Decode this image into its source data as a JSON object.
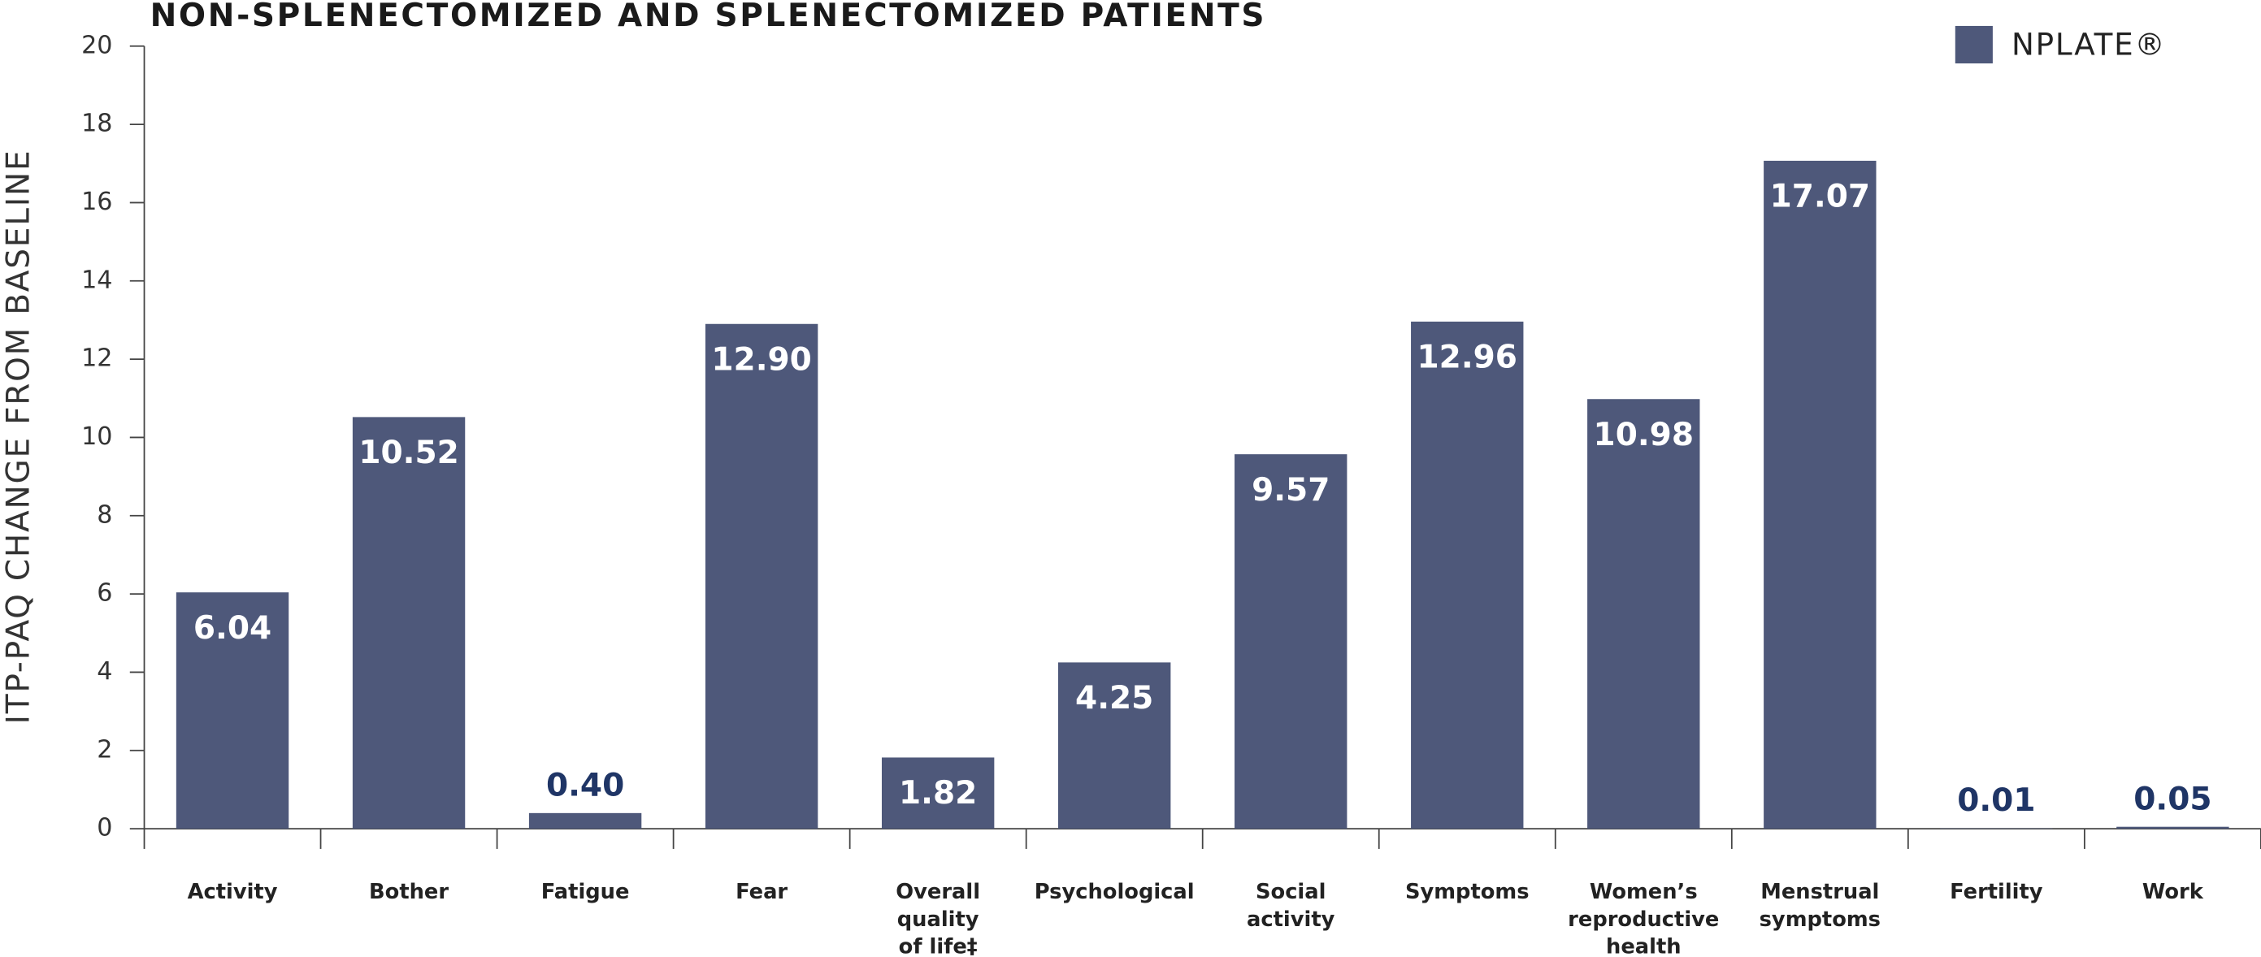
{
  "chart_data": {
    "type": "bar",
    "title": "NON-SPLENECTOMIZED AND SPLENECTOMIZED PATIENTS",
    "y_label": "ITP-PAQ CHANGE FROM BASELINE",
    "categories": [
      "Activity",
      "Bother",
      "Fatigue",
      "Fear",
      "Overall quality of life‡",
      "Psychological",
      "Social activity",
      "Symptoms",
      "Women’s reproductive health",
      "Menstrual symptoms",
      "Fertility",
      "Work"
    ],
    "series": [
      {
        "name": "NPLATE®",
        "color": "#4e587a",
        "values": [
          6.04,
          10.52,
          0.4,
          12.9,
          1.82,
          4.25,
          9.57,
          12.96,
          10.98,
          17.07,
          0.01,
          0.05
        ],
        "value_labels": [
          "6.04",
          "10.52",
          "0.40",
          "12.90",
          "1.82",
          "4.25",
          "9.57",
          "12.96",
          "10.98",
          "17.07",
          "0.01",
          "0.05"
        ]
      }
    ],
    "ylim": [
      0,
      20
    ],
    "yticks": [
      0,
      2,
      4,
      6,
      8,
      10,
      12,
      14,
      16,
      18,
      20
    ],
    "grid": false,
    "legend": "top-right"
  }
}
